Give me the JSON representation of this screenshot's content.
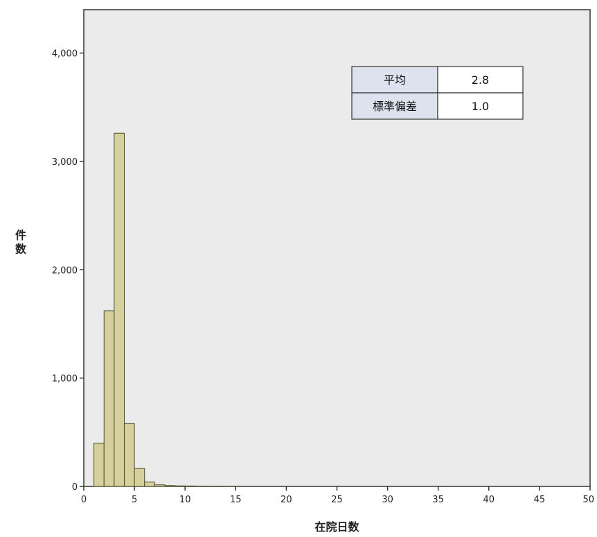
{
  "chart_data": {
    "type": "bar",
    "xlabel": "在院日数",
    "ylabel": "件数",
    "xlim": [
      0,
      50
    ],
    "ylim": [
      0,
      4400
    ],
    "bin_width": 1,
    "x_ticks": [
      0,
      5,
      10,
      15,
      20,
      25,
      30,
      35,
      40,
      45,
      50
    ],
    "x_tick_labels": [
      "0",
      "5",
      "10",
      "15",
      "20",
      "25",
      "30",
      "35",
      "40",
      "45",
      "50"
    ],
    "y_ticks": [
      0,
      1000,
      2000,
      3000,
      4000
    ],
    "y_tick_labels": [
      "0",
      "1,000",
      "2,000",
      "3,000",
      "4,000"
    ],
    "bins": [
      {
        "x0": 1,
        "x1": 2,
        "value": 400
      },
      {
        "x0": 2,
        "x1": 3,
        "value": 1620
      },
      {
        "x0": 3,
        "x1": 4,
        "value": 3260
      },
      {
        "x0": 4,
        "x1": 5,
        "value": 580
      },
      {
        "x0": 5,
        "x1": 6,
        "value": 165
      },
      {
        "x0": 6,
        "x1": 7,
        "value": 40
      },
      {
        "x0": 7,
        "x1": 8,
        "value": 15
      },
      {
        "x0": 8,
        "x1": 9,
        "value": 8
      },
      {
        "x0": 9,
        "x1": 10,
        "value": 5
      },
      {
        "x0": 10,
        "x1": 11,
        "value": 4
      },
      {
        "x0": 11,
        "x1": 12,
        "value": 3
      },
      {
        "x0": 12,
        "x1": 13,
        "value": 2
      },
      {
        "x0": 13,
        "x1": 14,
        "value": 2
      },
      {
        "x0": 14,
        "x1": 15,
        "value": 1
      }
    ],
    "grid": false,
    "colors": {
      "plot_background": "#ebebeb",
      "bar_fill": "#d6d19c",
      "bar_stroke": "#4a4a28",
      "axis": "#333333",
      "stats_label_bg": "#dce3ee"
    },
    "stats_table": {
      "rows": [
        {
          "label": "平均",
          "value": "2.8"
        },
        {
          "label": "標準偏差",
          "value": "1.0"
        }
      ]
    }
  }
}
